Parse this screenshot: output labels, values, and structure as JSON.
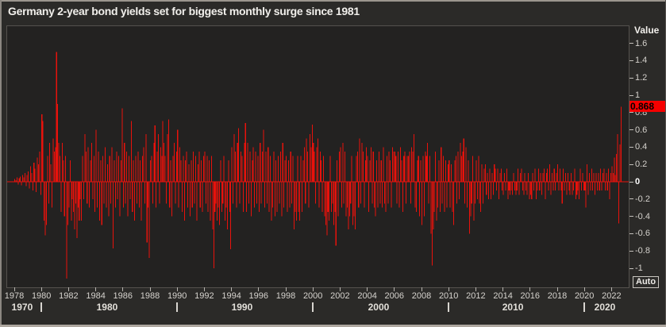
{
  "title": "Germany 2-year bond yields set for biggest monthly surge since 1981",
  "colors": {
    "background": "#2b2a28",
    "plot_background": "#232221",
    "bar": "#e8120c",
    "zero_line": "#e8120c",
    "badge_background": "#f60000",
    "badge_text": "#000000",
    "axis_text": "#d4d1cc"
  },
  "y_axis": {
    "title": "Value",
    "tick_labels": [
      "1.6",
      "1.4",
      "1.2",
      "1",
      "0.8",
      "0.6",
      "0.4",
      "0.2",
      "0",
      "-0.2",
      "-0.4",
      "-0.6",
      "-0.8",
      "-1"
    ],
    "tick_values": [
      1.6,
      1.4,
      1.2,
      1.0,
      0.8,
      0.6,
      0.4,
      0.2,
      0,
      -0.2,
      -0.4,
      -0.6,
      -0.8,
      -1.0
    ],
    "last_value_badge": "0.868",
    "auto_button_label": "Auto"
  },
  "x_axis": {
    "year_labels": [
      "1978",
      "1980",
      "1982",
      "1984",
      "1986",
      "1988",
      "1990",
      "1992",
      "1994",
      "1996",
      "1998",
      "2000",
      "2002",
      "2004",
      "2006",
      "2008",
      "2010",
      "2012",
      "2014",
      "2016",
      "2018",
      "2020",
      "2022"
    ],
    "decade_labels": [
      "1970",
      "1980",
      "1990",
      "2000",
      "2010",
      "2020"
    ],
    "decade_separator_years": [
      1980,
      1990,
      2000,
      2010,
      2020
    ]
  },
  "chart_data": {
    "type": "bar",
    "title": "Germany 2-year bond yields set for biggest monthly surge since 1981",
    "ylabel": "Value",
    "frequency": "monthly",
    "start_year": 1978,
    "start_month": 1,
    "ylim": [
      -1.2,
      1.8
    ],
    "x_tick_years": [
      1978,
      1980,
      1982,
      1984,
      1986,
      1988,
      1990,
      1992,
      1994,
      1996,
      1998,
      2000,
      2002,
      2004,
      2006,
      2008,
      2010,
      2012,
      2014,
      2016,
      2018,
      2020,
      2022
    ],
    "last_value": 0.868,
    "legend": "off",
    "grid": "off",
    "values": [
      0.03,
      0.02,
      0.05,
      -0.03,
      0.04,
      0.06,
      -0.04,
      0.08,
      0.05,
      0.1,
      -0.05,
      0.08,
      0.12,
      -0.08,
      0.18,
      0.1,
      -0.1,
      0.22,
      0.15,
      -0.12,
      0.28,
      0.2,
      0.35,
      -0.15,
      0.78,
      0.7,
      -0.45,
      -0.62,
      -0.5,
      0.3,
      -0.25,
      0.45,
      0.2,
      -0.3,
      0.5,
      0.35,
      0.4,
      1.5,
      0.9,
      0.45,
      0.3,
      -0.35,
      0.45,
      0.25,
      -0.4,
      0.3,
      -1.12,
      -0.5,
      -0.3,
      0.25,
      -0.45,
      -0.2,
      -0.35,
      -0.55,
      -0.25,
      -0.65,
      -0.3,
      -0.45,
      -0.2,
      -0.45,
      0.3,
      -0.2,
      0.55,
      0.35,
      -0.25,
      0.4,
      -0.3,
      0.25,
      0.45,
      -0.2,
      0.3,
      -0.35,
      0.6,
      -0.3,
      0.35,
      -0.45,
      0.25,
      -0.5,
      0.3,
      -0.25,
      0.4,
      -0.3,
      0.2,
      -0.4,
      0.3,
      -0.25,
      0.4,
      -0.77,
      0.25,
      -0.3,
      0.35,
      -0.2,
      0.3,
      -0.4,
      0.25,
      0.85,
      -0.3,
      0.45,
      -0.25,
      0.35,
      -0.4,
      0.3,
      -0.2,
      0.7,
      -0.35,
      0.25,
      -0.45,
      0.3,
      -0.25,
      0.35,
      -0.3,
      0.25,
      -0.45,
      0.3,
      0.4,
      -0.25,
      0.55,
      -0.7,
      -0.3,
      -0.88,
      0.25,
      0.3,
      -0.25,
      0.45,
      0.65,
      -0.3,
      0.35,
      0.55,
      -0.25,
      0.4,
      0.3,
      0.7,
      0.45,
      0.3,
      -0.25,
      0.55,
      0.72,
      -0.3,
      0.25,
      -0.4,
      0.3,
      0.45,
      -0.25,
      0.35,
      0.6,
      -0.3,
      0.4,
      0.25,
      -0.35,
      0.3,
      -0.45,
      0.25,
      0.35,
      -0.3,
      0.2,
      -0.4,
      0.25,
      -0.3,
      0.35,
      -0.25,
      0.3,
      -0.45,
      0.2,
      0.35,
      -0.3,
      0.25,
      -0.35,
      0.3,
      0.35,
      -0.25,
      0.3,
      -0.35,
      0.25,
      -0.45,
      0.3,
      -0.55,
      -1.0,
      -0.35,
      -0.25,
      -0.45,
      -0.3,
      -0.5,
      0.25,
      -0.35,
      -0.25,
      0.3,
      -0.45,
      -0.3,
      -0.55,
      0.25,
      -0.35,
      -0.78,
      0.4,
      -0.25,
      0.55,
      0.35,
      -0.3,
      0.45,
      0.62,
      -0.25,
      0.35,
      0.3,
      -0.35,
      0.45,
      0.68,
      -0.35,
      0.45,
      -0.25,
      0.35,
      -0.4,
      0.25,
      0.4,
      -0.3,
      0.35,
      -0.25,
      0.3,
      -0.35,
      0.45,
      -0.25,
      0.35,
      0.6,
      -0.3,
      0.35,
      -0.25,
      0.4,
      -0.35,
      0.3,
      -0.45,
      -0.3,
      0.35,
      -0.4,
      0.25,
      -0.35,
      0.3,
      -0.25,
      0.35,
      -0.4,
      0.45,
      -0.3,
      0.25,
      0.3,
      -0.35,
      0.25,
      -0.3,
      0.35,
      -0.25,
      0.3,
      -0.55,
      -0.35,
      -0.45,
      0.3,
      -0.35,
      -0.45,
      0.3,
      -0.35,
      0.25,
      0.4,
      -0.25,
      0.5,
      0.35,
      -0.3,
      0.55,
      0.4,
      0.66,
      0.45,
      0.35,
      -0.25,
      0.4,
      0.5,
      -0.3,
      0.35,
      0.25,
      -0.35,
      0.3,
      -0.4,
      -0.5,
      -0.62,
      -0.35,
      -0.45,
      0.3,
      -0.35,
      -0.25,
      -0.5,
      -0.35,
      -0.74,
      0.25,
      -0.4,
      0.35,
      0.4,
      -0.3,
      0.45,
      -0.25,
      0.35,
      -0.4,
      -0.3,
      -0.55,
      -0.4,
      -0.25,
      0.3,
      -0.5,
      -0.4,
      -0.55,
      0.3,
      0.35,
      -0.3,
      0.5,
      -0.25,
      0.45,
      0.35,
      -0.3,
      0.25,
      0.4,
      0.3,
      -0.35,
      0.25,
      0.4,
      -0.25,
      0.35,
      -0.3,
      -0.4,
      0.25,
      -0.3,
      0.35,
      -0.25,
      0.25,
      -0.3,
      0.4,
      -0.25,
      -0.35,
      0.3,
      -0.25,
      0.35,
      0.25,
      -0.3,
      0.4,
      0.35,
      0.35,
      0.3,
      -0.25,
      0.35,
      -0.3,
      0.4,
      0.25,
      -0.35,
      0.3,
      0.35,
      -0.25,
      0.3,
      0.3,
      0.35,
      -0.25,
      0.4,
      0.35,
      0.55,
      -0.3,
      -0.35,
      0.25,
      0.3,
      -0.4,
      0.25,
      -0.5,
      0.3,
      -0.4,
      0.35,
      0.3,
      0.45,
      -0.25,
      0.3,
      -0.6,
      -0.97,
      -0.55,
      -0.35,
      0.35,
      -0.45,
      -0.3,
      0.25,
      -0.35,
      0.4,
      -0.25,
      0.3,
      -0.35,
      0.25,
      -0.3,
      0.2,
      0.25,
      -0.3,
      0.2,
      -0.35,
      -0.5,
      0.25,
      0.3,
      -0.25,
      0.35,
      -0.2,
      0.45,
      0.3,
      0.35,
      0.5,
      -0.25,
      0.4,
      -0.3,
      0.25,
      -0.6,
      -0.4,
      -0.25,
      0.3,
      -0.45,
      -0.25,
      0.25,
      -0.2,
      0.3,
      -0.25,
      -0.35,
      0.2,
      -0.25,
      0.15,
      0.2,
      -0.15,
      0.1,
      -0.2,
      0.15,
      -0.2,
      0.1,
      -0.15,
      0.2,
      0.15,
      -0.1,
      0.15,
      -0.2,
      0.1,
      0.15,
      -0.1,
      -0.15,
      0.1,
      -0.1,
      0.15,
      -0.2,
      -0.1,
      -0.15,
      -0.1,
      -0.15,
      0.1,
      -0.1,
      -0.15,
      -0.1,
      0.15,
      -0.15,
      0.1,
      0.15,
      -0.1,
      -0.15,
      0.1,
      -0.1,
      -0.15,
      0.1,
      -0.2,
      -0.15,
      -0.2,
      0.1,
      -0.1,
      0.15,
      -0.2,
      -0.1,
      0.15,
      -0.1,
      0.1,
      -0.15,
      0.1,
      0.15,
      -0.2,
      0.1,
      0.15,
      -0.1,
      0.2,
      -0.15,
      0.1,
      -0.1,
      0.15,
      -0.1,
      0.1,
      0.2,
      -0.1,
      0.15,
      -0.1,
      -0.25,
      0.15,
      -0.1,
      0.1,
      -0.15,
      0.1,
      -0.1,
      -0.15,
      0.1,
      -0.15,
      -0.1,
      0.15,
      -0.2,
      -0.15,
      -0.1,
      -0.2,
      0.15,
      -0.1,
      0.1,
      -0.1,
      -0.1,
      -0.3,
      0.2,
      -0.15,
      0.1,
      -0.1,
      0.15,
      -0.1,
      0.1,
      -0.15,
      0.1,
      -0.1,
      0.1,
      -0.1,
      0.15,
      -0.1,
      0.1,
      0.15,
      -0.1,
      0.1,
      -0.1,
      0.15,
      -0.2,
      0.1,
      0.18,
      0.1,
      0.28,
      0.08,
      0.32,
      0.55,
      -0.48,
      0.43,
      0.868
    ]
  }
}
